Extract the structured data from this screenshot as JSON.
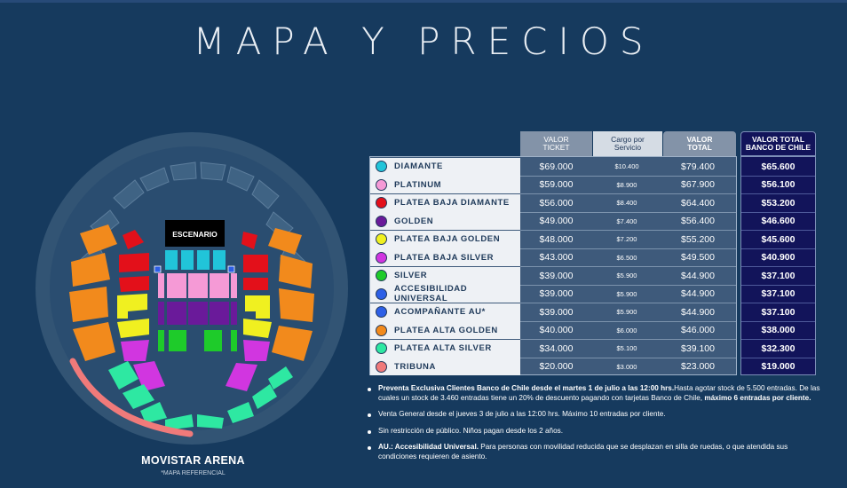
{
  "title": "MAPA Y PRECIOS",
  "map": {
    "stage_label": "ESCENARIO",
    "venue_name": "MOVISTAR ARENA",
    "venue_note": "*MAPA REFERENCIAL"
  },
  "columns": {
    "ticket_line1": "VALOR",
    "ticket_line2": "TICKET",
    "cargo_line1": "Cargo por",
    "cargo_line2": "Servicio",
    "total_line1": "VALOR",
    "total_line2": "TOTAL",
    "bch_line1": "VALOR TOTAL",
    "bch_line2": "BANCO DE CHILE"
  },
  "zones": [
    {
      "name": "DIAMANTE",
      "color": "#21c4d9",
      "ticket": "$69.000",
      "cargo": "$10.400",
      "total": "$79.400",
      "bch": "$65.600"
    },
    {
      "name": "PLATINUM",
      "color": "#f59ad6",
      "ticket": "$59.000",
      "cargo": "$8.900",
      "total": "$67.900",
      "bch": "$56.100"
    },
    {
      "name": "PLATEA BAJA DIAMANTE",
      "color": "#e3101a",
      "ticket": "$56.000",
      "cargo": "$8.400",
      "total": "$64.400",
      "bch": "$53.200"
    },
    {
      "name": "GOLDEN",
      "color": "#6a1a9a",
      "ticket": "$49.000",
      "cargo": "$7.400",
      "total": "$56.400",
      "bch": "$46.600"
    },
    {
      "name": "PLATEA BAJA GOLDEN",
      "color": "#f0f020",
      "ticket": "$48.000",
      "cargo": "$7.200",
      "total": "$55.200",
      "bch": "$45.600"
    },
    {
      "name": "PLATEA BAJA SILVER",
      "color": "#d136e0",
      "ticket": "$43.000",
      "cargo": "$6.500",
      "total": "$49.500",
      "bch": "$40.900"
    },
    {
      "name": "SILVER",
      "color": "#1ecb2a",
      "ticket": "$39.000",
      "cargo": "$5.900",
      "total": "$44.900",
      "bch": "$37.100"
    },
    {
      "name": "ACCESIBILIDAD UNIVERSAL",
      "color": "#2d5fe6",
      "ticket": "$39.000",
      "cargo": "$5.900",
      "total": "$44.900",
      "bch": "$37.100"
    },
    {
      "name": "ACOMPAÑANTE AU*",
      "color": "#2d5fe6",
      "ticket": "$39.000",
      "cargo": "$5.900",
      "total": "$44.900",
      "bch": "$37.100"
    },
    {
      "name": "PLATEA ALTA GOLDEN",
      "color": "#f28a1c",
      "ticket": "$40.000",
      "cargo": "$6.000",
      "total": "$46.000",
      "bch": "$38.000"
    },
    {
      "name": "PLATEA ALTA SILVER",
      "color": "#2ee8a2",
      "ticket": "$34.000",
      "cargo": "$5.100",
      "total": "$39.100",
      "bch": "$32.300"
    },
    {
      "name": "TRIBUNA",
      "color": "#f07a7a",
      "ticket": "$20.000",
      "cargo": "$3.000",
      "total": "$23.000",
      "bch": "$19.000"
    }
  ],
  "notes": {
    "n1_bold": "Preventa Exclusiva Clientes Banco de Chile desde el martes 1 de julio a las 12:00 hrs.",
    "n1_text": "Hasta agotar stock de 5.500 entradas. De las cuales un stock de 3.460 entradas tiene un 20% de descuento pagando con tarjetas Banco de Chile, ",
    "n1_bold2": "máximo 6 entradas por cliente.",
    "n2": "Venta General desde el jueves 3 de julio a las 12:00 hrs. Máximo 10 entradas por cliente.",
    "n3": "Sin restricción de público. Niños pagan desde los 2 años.",
    "n4_bold": "AU.: Accesibilidad Universal.",
    "n4_text": " Para personas con movilidad reducida que se desplazan en silla de ruedas, o que atendida sus condiciones requieren de asiento."
  }
}
